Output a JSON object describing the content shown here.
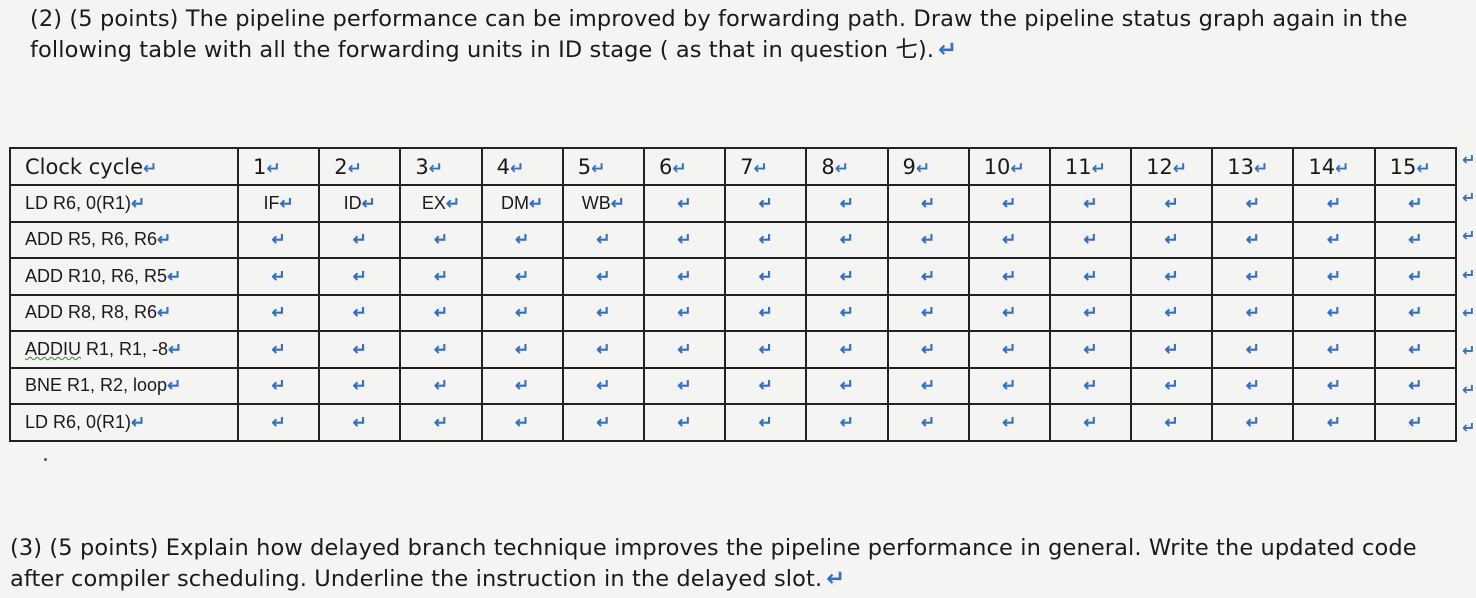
{
  "question2": {
    "text": "(2) (5 points) The pipeline performance can be improved by forwarding path. Draw the pipeline status graph again in the following table with all the forwarding units in ID stage ( as that in question 七).",
    "mark": "↵"
  },
  "table": {
    "header_label": "Clock cycle",
    "cycles": [
      "1",
      "2",
      "3",
      "4",
      "5",
      "6",
      "7",
      "8",
      "9",
      "10",
      "11",
      "12",
      "13",
      "14",
      "15"
    ],
    "rows": [
      {
        "instruction": "LD R6, 0(R1)",
        "stages": [
          "IF",
          "ID",
          "EX",
          "DM",
          "WB",
          "",
          "",
          "",
          "",
          "",
          "",
          "",
          "",
          "",
          ""
        ]
      },
      {
        "instruction": "ADD R5, R6, R6",
        "stages": [
          "",
          "",
          "",
          "",
          "",
          "",
          "",
          "",
          "",
          "",
          "",
          "",
          "",
          "",
          ""
        ]
      },
      {
        "instruction": "ADD R10, R6, R5",
        "stages": [
          "",
          "",
          "",
          "",
          "",
          "",
          "",
          "",
          "",
          "",
          "",
          "",
          "",
          "",
          ""
        ]
      },
      {
        "instruction": "ADD R8, R8, R6",
        "stages": [
          "",
          "",
          "",
          "",
          "",
          "",
          "",
          "",
          "",
          "",
          "",
          "",
          "",
          "",
          ""
        ]
      },
      {
        "instruction": "ADDIU R1, R1, -8",
        "stages": [
          "",
          "",
          "",
          "",
          "",
          "",
          "",
          "",
          "",
          "",
          "",
          "",
          "",
          "",
          ""
        ]
      },
      {
        "instruction": "BNE R1, R2, loop",
        "stages": [
          "",
          "",
          "",
          "",
          "",
          "",
          "",
          "",
          "",
          "",
          "",
          "",
          "",
          "",
          ""
        ]
      },
      {
        "instruction": "LD R6, 0(R1)",
        "stages": [
          "",
          "",
          "",
          "",
          "",
          "",
          "",
          "",
          "",
          "",
          "",
          "",
          "",
          "",
          ""
        ]
      }
    ],
    "cell_mark": "↵",
    "accent_color": "#2f6fd0"
  },
  "question3": {
    "text": "(3) (5 points) Explain how delayed branch technique improves the pipeline performance in general. Write the updated code after compiler scheduling.  Underline the instruction in the delayed slot.",
    "mark": "↵"
  }
}
